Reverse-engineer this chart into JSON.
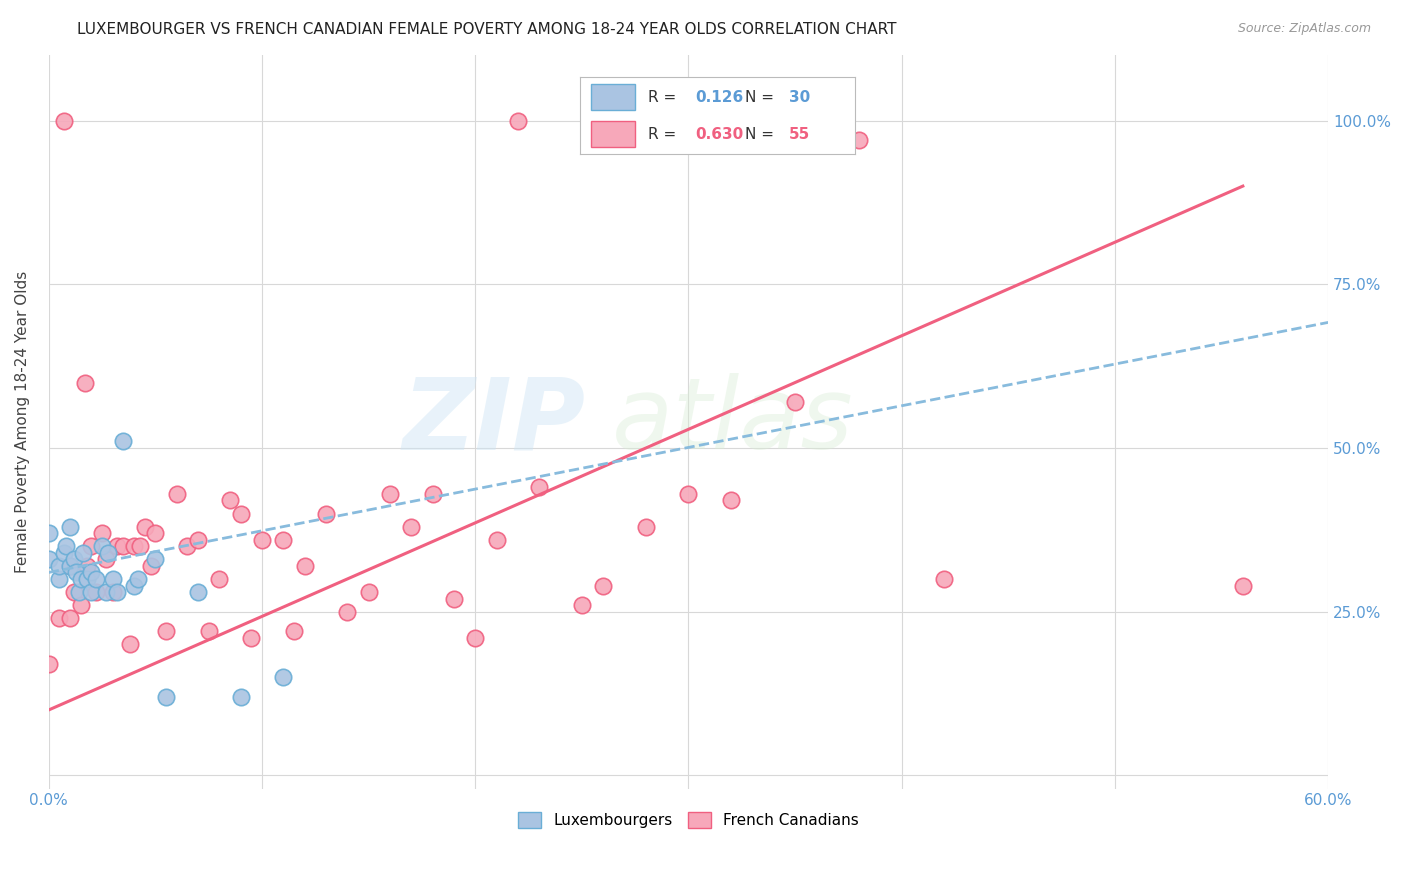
{
  "title": "LUXEMBOURGER VS FRENCH CANADIAN FEMALE POVERTY AMONG 18-24 YEAR OLDS CORRELATION CHART",
  "source": "Source: ZipAtlas.com",
  "ylabel": "Female Poverty Among 18-24 Year Olds",
  "xlim": [
    0.0,
    0.6
  ],
  "ylim": [
    -0.02,
    1.1
  ],
  "x_ticks": [
    0.0,
    0.1,
    0.2,
    0.3,
    0.4,
    0.5,
    0.6
  ],
  "y_ticks": [
    0.0,
    0.25,
    0.5,
    0.75,
    1.0
  ],
  "y_tick_labels": [
    "",
    "25.0%",
    "50.0%",
    "75.0%",
    "100.0%"
  ],
  "lux_R": "0.126",
  "lux_N": "30",
  "fc_R": "0.630",
  "fc_N": "55",
  "lux_color": "#aac4e2",
  "fc_color": "#f7a8ba",
  "lux_edge_color": "#6aaed6",
  "fc_edge_color": "#f06080",
  "lux_line_color": "#88bbdd",
  "fc_line_color": "#f06080",
  "watermark": "ZIPatlas",
  "lux_points_x": [
    0.0,
    0.0,
    0.005,
    0.005,
    0.007,
    0.008,
    0.01,
    0.01,
    0.012,
    0.013,
    0.014,
    0.015,
    0.016,
    0.018,
    0.02,
    0.02,
    0.022,
    0.025,
    0.027,
    0.028,
    0.03,
    0.032,
    0.035,
    0.04,
    0.042,
    0.05,
    0.055,
    0.07,
    0.09,
    0.11
  ],
  "lux_points_y": [
    0.33,
    0.37,
    0.3,
    0.32,
    0.34,
    0.35,
    0.32,
    0.38,
    0.33,
    0.31,
    0.28,
    0.3,
    0.34,
    0.3,
    0.28,
    0.31,
    0.3,
    0.35,
    0.28,
    0.34,
    0.3,
    0.28,
    0.51,
    0.29,
    0.3,
    0.33,
    0.12,
    0.28,
    0.12,
    0.15
  ],
  "fc_points_x": [
    0.0,
    0.005,
    0.007,
    0.01,
    0.01,
    0.012,
    0.015,
    0.017,
    0.018,
    0.02,
    0.022,
    0.025,
    0.027,
    0.03,
    0.032,
    0.035,
    0.038,
    0.04,
    0.043,
    0.045,
    0.048,
    0.05,
    0.055,
    0.06,
    0.065,
    0.07,
    0.075,
    0.08,
    0.085,
    0.09,
    0.095,
    0.1,
    0.11,
    0.115,
    0.12,
    0.13,
    0.14,
    0.15,
    0.16,
    0.17,
    0.18,
    0.19,
    0.2,
    0.21,
    0.22,
    0.23,
    0.25,
    0.26,
    0.28,
    0.3,
    0.32,
    0.35,
    0.38,
    0.42,
    0.56
  ],
  "fc_points_y": [
    0.17,
    0.24,
    1.0,
    0.24,
    0.32,
    0.28,
    0.26,
    0.6,
    0.32,
    0.35,
    0.28,
    0.37,
    0.33,
    0.28,
    0.35,
    0.35,
    0.2,
    0.35,
    0.35,
    0.38,
    0.32,
    0.37,
    0.22,
    0.43,
    0.35,
    0.36,
    0.22,
    0.3,
    0.42,
    0.4,
    0.21,
    0.36,
    0.36,
    0.22,
    0.32,
    0.4,
    0.25,
    0.28,
    0.43,
    0.38,
    0.43,
    0.27,
    0.21,
    0.36,
    1.0,
    0.44,
    0.26,
    0.29,
    0.38,
    0.43,
    0.42,
    0.57,
    0.97,
    0.3,
    0.29
  ],
  "fc_trendline_x": [
    0.0,
    0.56
  ],
  "fc_trendline_y": [
    0.1,
    0.9
  ],
  "lux_trendline_x": [
    0.0,
    0.11
  ],
  "lux_trendline_y": [
    0.31,
    0.38
  ]
}
